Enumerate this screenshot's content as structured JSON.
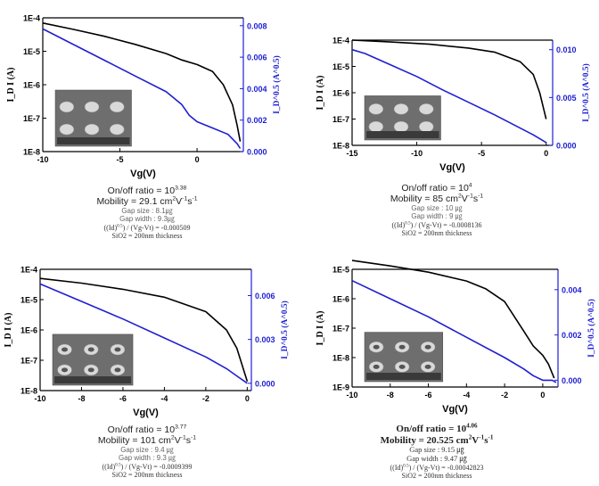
{
  "colors": {
    "id_curve": "#000000",
    "sqrt_curve": "#1f1fd2",
    "right_axis": "#1f1fd2",
    "micrograph": "#6e6e6e"
  },
  "chart_data": [
    {
      "type": "line",
      "xlabel": "Vg(V)",
      "ylabel_left": "I_D I (A)",
      "ylabel_right": "I_D^0.5 (A^0.5)",
      "xlim": [
        -10,
        3
      ],
      "x_ticks": [
        "-10",
        "-5",
        "0"
      ],
      "y_left_log": true,
      "y_left_ticks": [
        "1E-8",
        "1E-7",
        "1E-6",
        "1E-5",
        "1E-4"
      ],
      "y_right_ticks": [
        "0.000",
        "0.002",
        "0.004",
        "0.006",
        "0.008"
      ],
      "y_right_lim": [
        0,
        0.0085
      ],
      "series": [
        {
          "axis": "left",
          "x": [
            -10,
            -8,
            -6,
            -4,
            -2,
            -1,
            0,
            1,
            1.7,
            2.3,
            2.6,
            2.8
          ],
          "y": [
            7e-05,
            4.5e-05,
            2.8e-05,
            1.6e-05,
            8.5e-06,
            5.5e-06,
            4e-06,
            2.5e-06,
            1e-06,
            2.5e-07,
            6e-08,
            2e-08
          ]
        },
        {
          "axis": "right",
          "x": [
            -10,
            -8,
            -6,
            -4,
            -2,
            -1,
            -0.5,
            0,
            1,
            2,
            2.6,
            2.8
          ],
          "y": [
            0.0078,
            0.0068,
            0.0058,
            0.0048,
            0.0038,
            0.003,
            0.0023,
            0.0019,
            0.0015,
            0.0011,
            0.0005,
            0.0002
          ]
        }
      ]
    },
    {
      "type": "line",
      "xlabel": "Vg(V)",
      "ylabel_left": "I_D I (A)",
      "ylabel_right": "I_D^0.5 (A^0.5)",
      "xlim": [
        -15,
        0.5
      ],
      "x_ticks": [
        "-15",
        "-10",
        "-5",
        "0"
      ],
      "y_left_log": true,
      "y_left_ticks": [
        "1E-8",
        "1E-7",
        "1E-6",
        "1E-5",
        "1E-4"
      ],
      "y_right_ticks": [
        "0.000",
        "0.005",
        "0.010"
      ],
      "y_right_lim": [
        0,
        0.011
      ],
      "series": [
        {
          "axis": "left",
          "x": [
            -15,
            -12,
            -9,
            -6,
            -4,
            -2,
            -1,
            -0.5,
            0
          ],
          "y": [
            0.0001,
            8.5e-05,
            7e-05,
            5e-05,
            3.5e-05,
            1.5e-05,
            5e-06,
            1e-06,
            1e-07
          ]
        },
        {
          "axis": "right",
          "x": [
            -15,
            -14,
            -12,
            -10,
            -8,
            -6,
            -4,
            -2,
            -1,
            0
          ],
          "y": [
            0.01,
            0.0096,
            0.0084,
            0.0072,
            0.0058,
            0.0045,
            0.0032,
            0.0018,
            0.0011,
            0.0003
          ]
        }
      ]
    },
    {
      "type": "line",
      "xlabel": "Vg(V)",
      "ylabel_left": "I_D I (A)",
      "ylabel_right": "I_D^0.5 (A^0.5)",
      "xlim": [
        -10,
        0.2
      ],
      "x_ticks": [
        "-10",
        "-8",
        "-6",
        "-4",
        "-2",
        "0"
      ],
      "y_left_log": true,
      "y_left_ticks": [
        "1E-8",
        "1E-7",
        "1E-6",
        "1E-5",
        "1E-4"
      ],
      "y_right_ticks": [
        "0.000",
        "0.003",
        "0.006"
      ],
      "y_right_lim": [
        -0.0005,
        0.0078
      ],
      "series": [
        {
          "axis": "left",
          "x": [
            -10,
            -8,
            -6,
            -4,
            -2,
            -1,
            -0.5,
            0
          ],
          "y": [
            5e-05,
            3.5e-05,
            2.2e-05,
            1.2e-05,
            4e-06,
            1e-06,
            2.5e-07,
            2e-08
          ]
        },
        {
          "axis": "right",
          "x": [
            -10,
            -8,
            -6,
            -4,
            -2,
            -1,
            -0.5,
            0
          ],
          "y": [
            0.0068,
            0.0056,
            0.0044,
            0.0031,
            0.0018,
            0.001,
            0.0005,
            0.0
          ]
        }
      ]
    },
    {
      "type": "line",
      "xlabel": "Vg(V)",
      "ylabel_left": "I_D I (A)",
      "ylabel_right": "I_D^0.5 (A^0.5)",
      "xlim": [
        -10,
        0.8
      ],
      "x_ticks": [
        "-10",
        "-8",
        "-6",
        "-4",
        "-2",
        "0"
      ],
      "y_left_log": true,
      "y_left_ticks": [
        "1E-9",
        "1E-8",
        "1E-7",
        "1E-6",
        "1E-5"
      ],
      "y_right_ticks": [
        "0.000",
        "0.002",
        "0.004"
      ],
      "y_right_lim": [
        -0.0003,
        0.0049
      ],
      "series": [
        {
          "axis": "left",
          "x": [
            -10,
            -8,
            -6,
            -4,
            -3,
            -2,
            -1,
            -0.5,
            0,
            0.3,
            0.6
          ],
          "y": [
            2e-05,
            1.3e-05,
            8e-06,
            4e-06,
            2.2e-06,
            8e-07,
            8e-08,
            2.5e-08,
            1.2e-08,
            6e-09,
            2e-09
          ]
        },
        {
          "axis": "right",
          "x": [
            -10,
            -8,
            -6,
            -4,
            -2,
            -1,
            -0.5,
            0,
            0.5,
            0.7
          ],
          "y": [
            0.0044,
            0.0036,
            0.0028,
            0.0019,
            0.001,
            0.0005,
            0.0002,
            0.0,
            0.0,
            -0.0001
          ]
        }
      ]
    }
  ],
  "captions": [
    {
      "ratio_text": "On/off ratio = 10",
      "ratio_exp": "3.38",
      "mobility_text": "Mobility = 29.1 cm",
      "gap_size": "Gap size : 8.1㎍",
      "gap_width": "Gap width : 9.3㎍",
      "slope": "((Id)⁰᐀⁵) / (Vg-Vt) = -0.000509",
      "sio2": "SiO2 = 200nm thickness"
    },
    {
      "ratio_text": "On/off ratio = 10",
      "ratio_exp": "4",
      "mobility_text": "Mobility = 85 cm",
      "gap_size": "Gap size : 10 ㎍",
      "gap_width": "Gap width : 9 ㎍",
      "slope": "((Id)⁰᐀⁵) / (Vg-Vt) = -0.0008136",
      "sio2": "SiO2 = 200nm thickness"
    },
    {
      "ratio_text": "On/off ratio = 10",
      "ratio_exp": "3.77",
      "mobility_text": "Mobility = 101 cm",
      "gap_size": "Gap size : 9.4 ㎍",
      "gap_width": "Gap width : 9.3 ㎍",
      "slope": "((Id)⁰᐀⁵) / (Vg-Vt) = -0.0009399",
      "sio2": "SiO2 = 200nm thickness"
    },
    {
      "ratio_text": "On/off ratio = 10",
      "ratio_exp": "4.06",
      "mobility_text": "Mobility = 20.525 cm",
      "gap_size": "Gap size : 9.15 ㎍",
      "gap_width": "Gap width : 9.47 ㎍",
      "slope": "((Id)⁰᐀⁵) / (Vg-Vt) = -0.00042823",
      "sio2": "SiO2 = 200nm thickness"
    }
  ],
  "mobility_units": {
    "base": "cm",
    "exp1": "2",
    "mid": "V",
    "exp2": "-1",
    "end": "s",
    "exp3": "-1"
  }
}
